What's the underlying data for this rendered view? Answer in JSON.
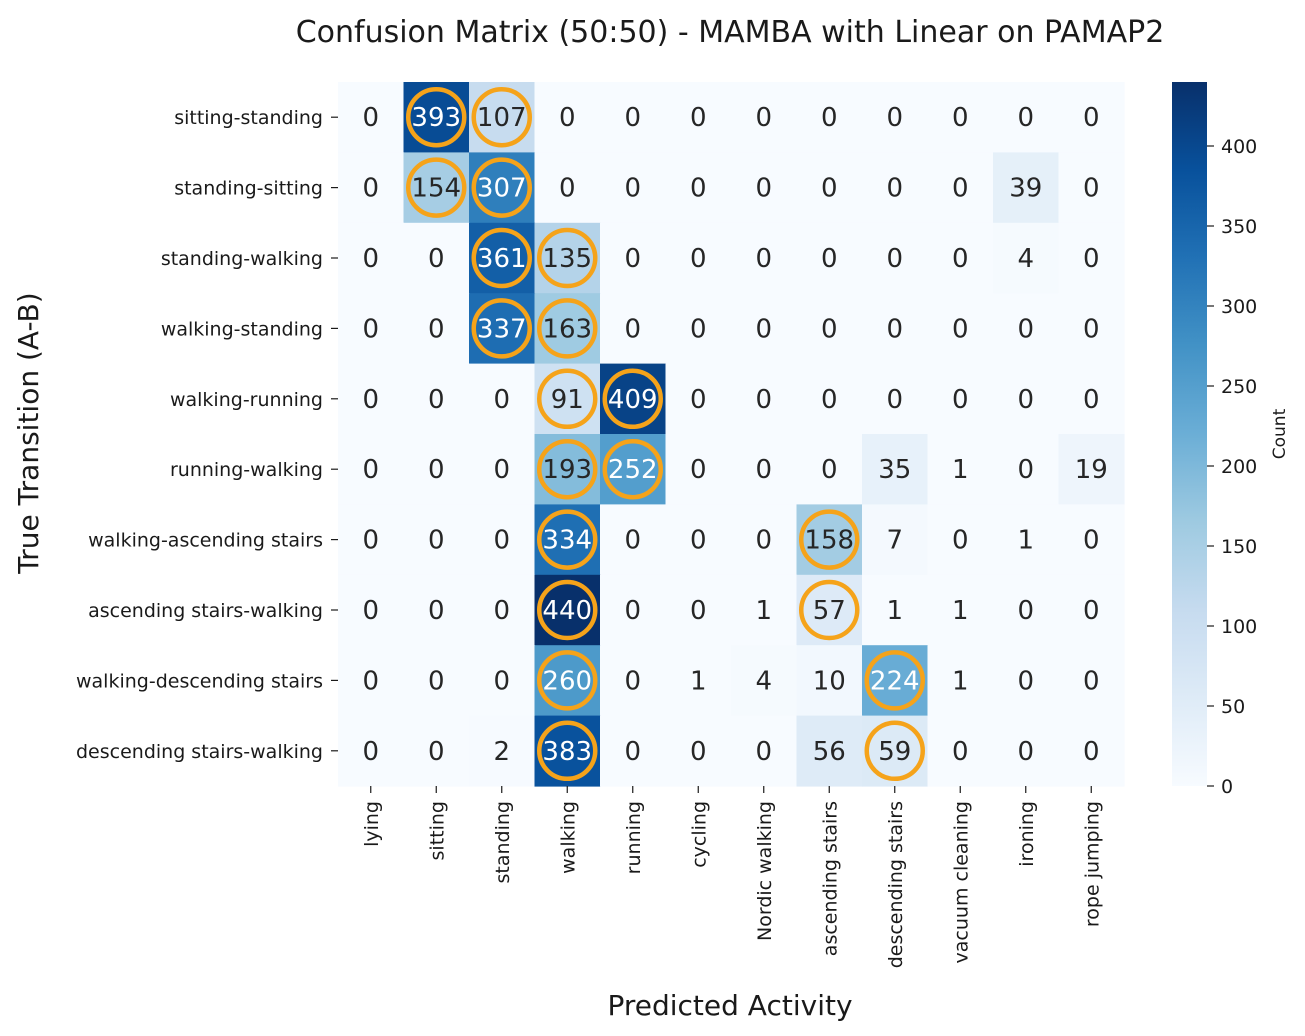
{
  "chart_data": {
    "type": "heatmap",
    "title": "Confusion Matrix (50:50) - MAMBA with Linear on PAMAP2",
    "xlabel": "Predicted Activity",
    "ylabel": "True Transition (A-B)",
    "colorbar_label": "Count",
    "x_categories": [
      "lying",
      "sitting",
      "standing",
      "walking",
      "running",
      "cycling",
      "Nordic walking",
      "ascending stairs",
      "descending stairs",
      "vacuum cleaning",
      "ironing",
      "rope jumping"
    ],
    "y_categories": [
      "sitting-standing",
      "standing-sitting",
      "standing-walking",
      "walking-standing",
      "walking-running",
      "running-walking",
      "walking-ascending stairs",
      "ascending stairs-walking",
      "walking-descending stairs",
      "descending stairs-walking"
    ],
    "values": [
      [
        0,
        393,
        107,
        0,
        0,
        0,
        0,
        0,
        0,
        0,
        0,
        0
      ],
      [
        0,
        154,
        307,
        0,
        0,
        0,
        0,
        0,
        0,
        0,
        39,
        0
      ],
      [
        0,
        0,
        361,
        135,
        0,
        0,
        0,
        0,
        0,
        0,
        4,
        0
      ],
      [
        0,
        0,
        337,
        163,
        0,
        0,
        0,
        0,
        0,
        0,
        0,
        0
      ],
      [
        0,
        0,
        0,
        91,
        409,
        0,
        0,
        0,
        0,
        0,
        0,
        0
      ],
      [
        0,
        0,
        0,
        193,
        252,
        0,
        0,
        0,
        35,
        1,
        0,
        19
      ],
      [
        0,
        0,
        0,
        334,
        0,
        0,
        0,
        158,
        7,
        0,
        1,
        0
      ],
      [
        0,
        0,
        0,
        440,
        0,
        0,
        1,
        57,
        1,
        1,
        0,
        0
      ],
      [
        0,
        0,
        0,
        260,
        0,
        1,
        4,
        10,
        224,
        1,
        0,
        0
      ],
      [
        0,
        0,
        2,
        383,
        0,
        0,
        0,
        56,
        59,
        0,
        0,
        0
      ]
    ],
    "highlighted": [
      [
        0,
        1
      ],
      [
        0,
        2
      ],
      [
        1,
        1
      ],
      [
        1,
        2
      ],
      [
        2,
        2
      ],
      [
        2,
        3
      ],
      [
        3,
        2
      ],
      [
        3,
        3
      ],
      [
        4,
        3
      ],
      [
        4,
        4
      ],
      [
        5,
        3
      ],
      [
        5,
        4
      ],
      [
        6,
        3
      ],
      [
        6,
        7
      ],
      [
        7,
        3
      ],
      [
        7,
        7
      ],
      [
        8,
        3
      ],
      [
        8,
        8
      ],
      [
        9,
        3
      ],
      [
        9,
        8
      ]
    ],
    "colorbar_range": [
      0,
      440
    ],
    "colorbar_ticks": [
      0,
      50,
      100,
      150,
      200,
      250,
      300,
      350,
      400
    ],
    "colormap": "Blues",
    "highlight_color": "#f5a31a"
  }
}
